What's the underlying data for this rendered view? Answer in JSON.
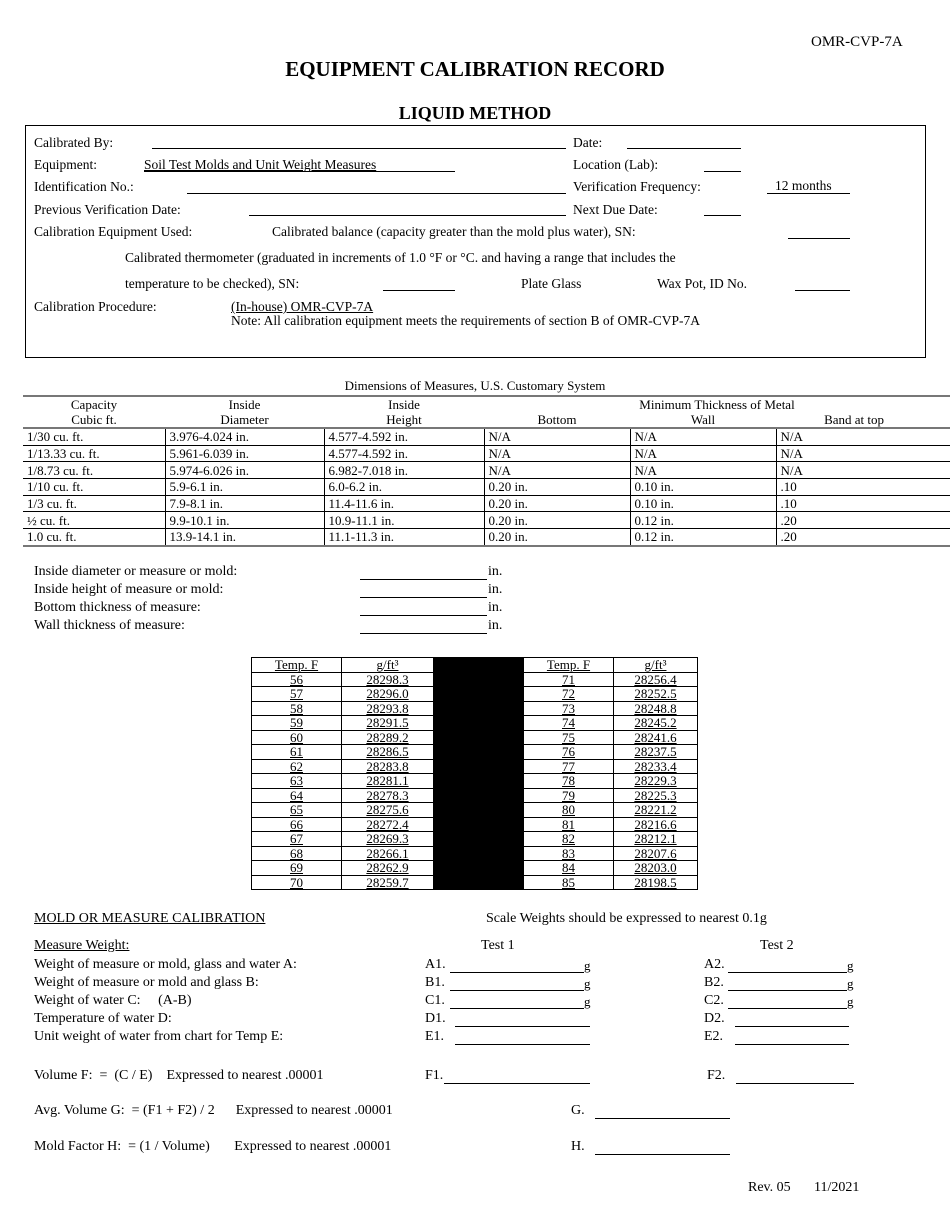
{
  "form_id": "OMR-CVP-7A",
  "title": "EQUIPMENT CALIBRATION RECORD",
  "subtitle": "LIQUID METHOD",
  "header": {
    "calibrated_by": "Calibrated By:",
    "date": "Date:",
    "equipment": "Equipment:",
    "equipment_value": "Soil Test Molds and Unit Weight Measures",
    "location": "Location (Lab):",
    "identification": "Identification No.:",
    "verification_frequency": "Verification Frequency:",
    "verification_frequency_value": "12 months",
    "previous_verification": "Previous Verification Date:",
    "next_due": "Next Due Date:",
    "calibration_equipment": "Calibration Equipment Used:",
    "balance": "Calibrated balance (capacity greater than the mold plus water), SN:",
    "thermometer_1": "Calibrated thermometer (graduated in increments of 1.0 °F or °C. and having a range that includes the",
    "thermometer_2": "temperature to be checked), SN:",
    "plate_glass": "Plate Glass",
    "wax_pot": "Wax Pot, ID No.",
    "procedure": "Calibration Procedure:",
    "procedure_value": "(In-house) OMR-CVP-7A",
    "note": "Note:  All calibration equipment meets the requirements of section B of OMR-CVP-7A"
  },
  "dimensions": {
    "caption": "Dimensions of Measures, U.S. Customary System",
    "group_header": "Minimum Thickness of Metal",
    "headers_top": [
      "Capacity",
      "Inside",
      "Inside"
    ],
    "headers_bottom": [
      "Cubic ft.",
      "Diameter",
      "Height",
      "Bottom",
      "Wall",
      "Band at top"
    ],
    "rows": [
      [
        "1/30 cu. ft.",
        "3.976-4.024 in.",
        "4.577-4.592 in.",
        "N/A",
        "N/A",
        "N/A"
      ],
      [
        "1/13.33 cu. ft.",
        "5.961-6.039 in.",
        "4.577-4.592 in.",
        "N/A",
        "N/A",
        "N/A"
      ],
      [
        "1/8.73 cu. ft.",
        "5.974-6.026 in.",
        "6.982-7.018 in.",
        "N/A",
        "N/A",
        "N/A"
      ],
      [
        "1/10 cu. ft.",
        "5.9-6.1 in.",
        "6.0-6.2 in.",
        "0.20 in.",
        "0.10 in.",
        ".10"
      ],
      [
        "1/3 cu. ft.",
        "7.9-8.1 in.",
        "11.4-11.6 in.",
        "0.20 in.",
        "0.10 in.",
        ".10"
      ],
      [
        "½ cu. ft.",
        "9.9-10.1 in.",
        "10.9-11.1 in.",
        "0.20 in.",
        "0.12 in.",
        ".20"
      ],
      [
        "1.0 cu. ft.",
        "13.9-14.1 in.",
        "11.1-11.3 in.",
        "0.20 in.",
        "0.12 in.",
        ".20"
      ]
    ]
  },
  "measurements": [
    {
      "label": "Inside diameter or measure or mold:",
      "unit": "in."
    },
    {
      "label": "Inside height of measure or mold:",
      "unit": "in."
    },
    {
      "label": "Bottom thickness of measure:",
      "unit": "in."
    },
    {
      "label": "Wall thickness of measure:",
      "unit": "in."
    }
  ],
  "water_table": {
    "header_temp": "Temp. F",
    "header_density": "g/ft³",
    "left": [
      [
        "56",
        "28298.3"
      ],
      [
        "57",
        "28296.0"
      ],
      [
        "58",
        "28293.8"
      ],
      [
        "59",
        "28291.5"
      ],
      [
        "60",
        "28289.2"
      ],
      [
        "61",
        "28286.5"
      ],
      [
        "62",
        "28283.8"
      ],
      [
        "63",
        "28281.1"
      ],
      [
        "64",
        "28278.3"
      ],
      [
        "65",
        "28275.6"
      ],
      [
        "66",
        "28272.4"
      ],
      [
        "67",
        "28269.3"
      ],
      [
        "68",
        "28266.1"
      ],
      [
        "69",
        "28262.9"
      ],
      [
        "70",
        "28259.7"
      ]
    ],
    "right": [
      [
        "71",
        "28256.4"
      ],
      [
        "72",
        "28252.5"
      ],
      [
        "73",
        "28248.8"
      ],
      [
        "74",
        "28245.2"
      ],
      [
        "75",
        "28241.6"
      ],
      [
        "76",
        "28237.5"
      ],
      [
        "77",
        "28233.4"
      ],
      [
        "78",
        "28229.3"
      ],
      [
        "79",
        "28225.3"
      ],
      [
        "80",
        "28221.2"
      ],
      [
        "81",
        "28216.6"
      ],
      [
        "82",
        "28212.1"
      ],
      [
        "83",
        "28207.6"
      ],
      [
        "84",
        "28203.0"
      ],
      [
        "85",
        "28198.5"
      ]
    ]
  },
  "mold": {
    "heading": "MOLD OR MEASURE CALIBRATION",
    "scale_note": "Scale Weights should be expressed to nearest 0.1g",
    "measure_weight": "Measure Weight:",
    "test1": "Test 1",
    "test2": "Test 2",
    "rows": [
      {
        "label": "Weight of measure or mold, glass and water A:",
        "t1": "A1.",
        "t2": "A2.",
        "unit": "g"
      },
      {
        "label": "Weight of measure or mold and glass B:",
        "t1": "B1.",
        "t2": "B2.",
        "unit": "g"
      },
      {
        "label": "Weight of water C:     (A-B)",
        "t1": "C1.",
        "t2": "C2.",
        "unit": "g"
      },
      {
        "label": "Temperature of water D:",
        "t1": "D1.",
        "t2": "D2.",
        "unit": ""
      },
      {
        "label": "Unit weight of water from chart for Temp E:",
        "t1": "E1.",
        "t2": "E2.",
        "unit": ""
      }
    ],
    "volume": "Volume F:  =  (C / E)    Expressed to nearest .00001",
    "f1": "F1.",
    "f2": "F2.",
    "avg_volume": "Avg. Volume G:  = (F1 + F2) / 2      Expressed to nearest .00001",
    "g": "G.",
    "mold_factor": "Mold Factor H:  = (1 / Volume)       Expressed to nearest .00001",
    "h": "H."
  },
  "footer": {
    "rev": "Rev. 05",
    "date": "11/2021"
  }
}
